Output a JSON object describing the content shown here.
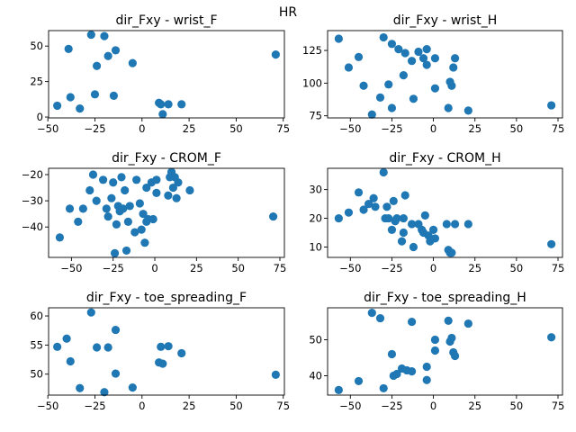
{
  "figure": {
    "suptitle": "HR"
  },
  "chart_data": [
    {
      "type": "scatter",
      "title": "dir_Fxy - wrist_F",
      "xlabel": "",
      "ylabel": "",
      "xlim": [
        -49.6,
        75.6
      ],
      "ylim": [
        -0.6,
        60.9
      ],
      "xticks": [
        -50,
        -25,
        0,
        25,
        50,
        75
      ],
      "yticks": [
        0,
        25,
        50
      ],
      "grid": false,
      "color": "#1f77b4",
      "points": [
        [
          -45,
          8
        ],
        [
          -39,
          48
        ],
        [
          -38,
          14
        ],
        [
          -33,
          6
        ],
        [
          -27,
          58
        ],
        [
          -25,
          16
        ],
        [
          -24,
          36
        ],
        [
          -20,
          57
        ],
        [
          -18,
          43
        ],
        [
          -15,
          15
        ],
        [
          -14,
          47
        ],
        [
          -5,
          38
        ],
        [
          9,
          10
        ],
        [
          10,
          9
        ],
        [
          11,
          2
        ],
        [
          14,
          9
        ],
        [
          21,
          9
        ],
        [
          71,
          44
        ]
      ]
    },
    {
      "type": "scatter",
      "title": "dir_Fxy - wrist_H",
      "xlabel": "",
      "ylabel": "",
      "xlim": [
        -63.7,
        77.7
      ],
      "ylim": [
        73.4,
        140.2
      ],
      "xticks": [
        -50,
        -25,
        0,
        25,
        50,
        75
      ],
      "yticks": [
        75,
        100,
        125
      ],
      "grid": false,
      "color": "#1f77b4",
      "points": [
        [
          -57,
          134
        ],
        [
          -51,
          112
        ],
        [
          -45,
          120
        ],
        [
          -42,
          98
        ],
        [
          -37,
          76
        ],
        [
          -32,
          89
        ],
        [
          -30,
          135
        ],
        [
          -27,
          99
        ],
        [
          -25,
          81
        ],
        [
          -25,
          130
        ],
        [
          -21,
          126
        ],
        [
          -18,
          106
        ],
        [
          -17,
          123
        ],
        [
          -13,
          117
        ],
        [
          -12,
          88
        ],
        [
          -9,
          124
        ],
        [
          -6,
          119
        ],
        [
          -4,
          114
        ],
        [
          -4,
          126
        ],
        [
          1,
          119
        ],
        [
          1,
          96
        ],
        [
          9,
          81
        ],
        [
          10,
          101
        ],
        [
          11,
          98
        ],
        [
          12,
          112
        ],
        [
          13,
          119
        ],
        [
          21,
          79
        ],
        [
          71,
          83
        ]
      ]
    },
    {
      "type": "scatter",
      "title": "dir_Fxy - CROM_F",
      "xlabel": "",
      "ylabel": "",
      "xlim": [
        -63.7,
        77.7
      ],
      "ylim": [
        -51.6,
        -17.6
      ],
      "xticks": [
        -50,
        -25,
        0,
        25,
        50,
        75
      ],
      "yticks": [
        -40,
        -30,
        -20
      ],
      "grid": false,
      "color": "#1f77b4",
      "points": [
        [
          -57,
          -44
        ],
        [
          -51,
          -33
        ],
        [
          -46,
          -38
        ],
        [
          -43,
          -33
        ],
        [
          -39,
          -26
        ],
        [
          -37,
          -20
        ],
        [
          -35,
          -30
        ],
        [
          -31,
          -22
        ],
        [
          -29,
          -33
        ],
        [
          -28,
          -36
        ],
        [
          -26,
          -29
        ],
        [
          -25,
          -23
        ],
        [
          -24,
          -50
        ],
        [
          -23,
          -39
        ],
        [
          -22,
          -32
        ],
        [
          -21,
          -34
        ],
        [
          -20,
          -21
        ],
        [
          -19,
          -33
        ],
        [
          -18,
          -26
        ],
        [
          -17,
          -49
        ],
        [
          -16,
          -38
        ],
        [
          -15,
          -32
        ],
        [
          -12,
          -42
        ],
        [
          -11,
          -22
        ],
        [
          -9,
          -31
        ],
        [
          -8,
          -41
        ],
        [
          -7,
          -35
        ],
        [
          -6,
          -46
        ],
        [
          -5,
          -38
        ],
        [
          -5,
          -25
        ],
        [
          -4,
          -37
        ],
        [
          -2,
          -23
        ],
        [
          -1,
          -37
        ],
        [
          1,
          -22
        ],
        [
          1,
          -27
        ],
        [
          8,
          -28
        ],
        [
          9,
          -21
        ],
        [
          10,
          -19
        ],
        [
          11,
          -25
        ],
        [
          12,
          -21
        ],
        [
          13,
          -29
        ],
        [
          14,
          -23
        ],
        [
          21,
          -26
        ],
        [
          71,
          -36
        ]
      ]
    },
    {
      "type": "scatter",
      "title": "dir_Fxy - CROM_H",
      "xlabel": "",
      "ylabel": "",
      "xlim": [
        -63.7,
        77.7
      ],
      "ylim": [
        6.4,
        37.4
      ],
      "xticks": [
        -50,
        -25,
        0,
        25,
        50,
        75
      ],
      "yticks": [
        10,
        20,
        30
      ],
      "grid": false,
      "color": "#1f77b4",
      "points": [
        [
          -57,
          20
        ],
        [
          -51,
          22
        ],
        [
          -45,
          29
        ],
        [
          -42,
          23
        ],
        [
          -39,
          25
        ],
        [
          -36,
          27
        ],
        [
          -35,
          24
        ],
        [
          -30,
          36
        ],
        [
          -29,
          20
        ],
        [
          -28,
          24
        ],
        [
          -27,
          20
        ],
        [
          -25,
          16
        ],
        [
          -24,
          26
        ],
        [
          -23,
          19
        ],
        [
          -22,
          20
        ],
        [
          -19,
          12
        ],
        [
          -18,
          15
        ],
        [
          -18,
          20
        ],
        [
          -17,
          28
        ],
        [
          -13,
          18
        ],
        [
          -12,
          10
        ],
        [
          -9,
          18
        ],
        [
          -7,
          16
        ],
        [
          -6,
          15
        ],
        [
          -5,
          21
        ],
        [
          -3,
          14
        ],
        [
          -2,
          12
        ],
        [
          0,
          16
        ],
        [
          1,
          13
        ],
        [
          8,
          18
        ],
        [
          9,
          9
        ],
        [
          10,
          8
        ],
        [
          11,
          8
        ],
        [
          13,
          18
        ],
        [
          21,
          18
        ],
        [
          71,
          11
        ]
      ]
    },
    {
      "type": "scatter",
      "title": "dir_Fxy - toe_spreading_F",
      "xlabel": "",
      "ylabel": "",
      "xlim": [
        -49.6,
        75.6
      ],
      "ylim": [
        46.4,
        61.4
      ],
      "xticks": [
        -50,
        -25,
        0,
        25,
        50,
        75
      ],
      "yticks": [
        50,
        55,
        60
      ],
      "grid": false,
      "color": "#1f77b4",
      "points": [
        [
          -45,
          54.7
        ],
        [
          -40,
          56.1
        ],
        [
          -38,
          52.2
        ],
        [
          -33,
          47.6
        ],
        [
          -27,
          60.6
        ],
        [
          -24,
          54.6
        ],
        [
          -20,
          46.9
        ],
        [
          -18,
          54.6
        ],
        [
          -14,
          57.6
        ],
        [
          -14,
          50.1
        ],
        [
          -5,
          47.7
        ],
        [
          9,
          52
        ],
        [
          10,
          54.7
        ],
        [
          11,
          51.8
        ],
        [
          14,
          54.8
        ],
        [
          21,
          53.6
        ],
        [
          71,
          49.9
        ]
      ]
    },
    {
      "type": "scatter",
      "title": "dir_Fxy - toe_spreading_H",
      "xlabel": "",
      "ylabel": "",
      "xlim": [
        -63.7,
        77.7
      ],
      "ylim": [
        34.6,
        58.9
      ],
      "xticks": [
        -50,
        -25,
        0,
        25,
        50,
        75
      ],
      "yticks": [
        40,
        50
      ],
      "grid": false,
      "color": "#1f77b4",
      "points": [
        [
          -57,
          36
        ],
        [
          -45,
          38.5
        ],
        [
          -37,
          57.5
        ],
        [
          -32,
          56
        ],
        [
          -30,
          36.5
        ],
        [
          -25,
          46
        ],
        [
          -24,
          40
        ],
        [
          -22,
          40.5
        ],
        [
          -19,
          42
        ],
        [
          -16,
          41.5
        ],
        [
          -13,
          55
        ],
        [
          -13,
          41.2
        ],
        [
          -4,
          42.5
        ],
        [
          -4,
          38.8
        ],
        [
          1,
          50
        ],
        [
          1,
          47
        ],
        [
          9,
          55.3
        ],
        [
          10,
          49.5
        ],
        [
          11,
          50.5
        ],
        [
          12,
          46.5
        ],
        [
          13,
          45.5
        ],
        [
          21,
          54.5
        ],
        [
          71,
          50.7
        ]
      ]
    }
  ]
}
